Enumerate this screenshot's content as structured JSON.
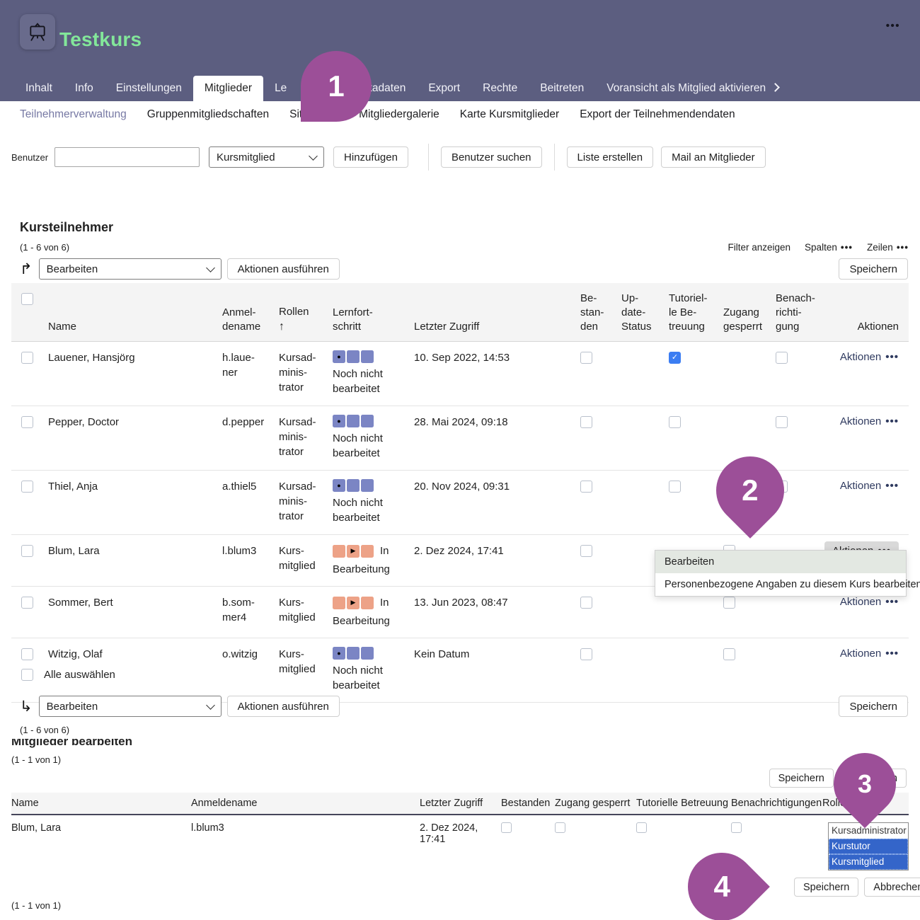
{
  "header": {
    "title": "Testkurs",
    "more": "•••",
    "tabs": [
      {
        "label": "Inhalt"
      },
      {
        "label": "Info"
      },
      {
        "label": "Einstellungen"
      },
      {
        "label": "Mitglieder",
        "active": true
      },
      {
        "label": "Le",
        "fragment": true
      },
      {
        "label": "Metadaten"
      },
      {
        "label": "Export"
      },
      {
        "label": "Rechte"
      },
      {
        "label": "Beitreten"
      },
      {
        "label": "Voransicht als Mitglied aktivieren",
        "chevron": true
      }
    ]
  },
  "subtabs": [
    {
      "label": "Teilnehmerverwaltung",
      "active": true
    },
    {
      "label": "Gruppenmitgliedschaften"
    },
    {
      "label": "Sitzungen"
    },
    {
      "label": "Mitgliedergalerie"
    },
    {
      "label": "Karte Kursmitglieder"
    },
    {
      "label": "Export der Teilnehmendendaten"
    }
  ],
  "toolbar": {
    "benutzer_label": "Benutzer",
    "input_value": "",
    "role_value": "Kursmitglied",
    "hinzufuegen": "Hinzufügen",
    "benutzer_suchen": "Benutzer suchen",
    "liste_erstellen": "Liste erstellen",
    "mail_an_mitglieder": "Mail an Mitglieder"
  },
  "participants": {
    "heading": "Kursteilnehmer",
    "count_top": "(1 - 6 von 6)",
    "filter_link": "Filter anzeigen",
    "spalten_link": "Spalten",
    "zeilen_link": "Zeilen",
    "dots": "•••",
    "bulk_value": "Bearbeiten",
    "apply_label": "Aktionen ausführen",
    "save_label": "Speichern",
    "select_all_label": "Alle auswählen",
    "count_bottom": "(1 - 6 von 6)",
    "aktionen_label": "Aktionen",
    "aktionen_dots": "•••",
    "columns": [
      {
        "label": "",
        "type": "checkbox"
      },
      {
        "label": "Name"
      },
      {
        "label": "Anmel-\ndename"
      },
      {
        "label": "Rollen",
        "sort": "↑"
      },
      {
        "label": "Lernfort-\nschritt"
      },
      {
        "label": "Letzter Zugriff"
      },
      {
        "label": "Be-\nstan-\nden"
      },
      {
        "label": "Up-\ndate-\nStatus"
      },
      {
        "label": "Tutoriel-\nle Be-\ntreuung"
      },
      {
        "label": "Zugang\ngesperrt"
      },
      {
        "label": "Benach-\nrichti-\ngung"
      },
      {
        "label": "Aktionen",
        "align": "right"
      }
    ],
    "rows": [
      {
        "name": "Lauener, Hansjörg",
        "login": "h.laue-\nner",
        "role": "Kursad-\nminis-\ntrator",
        "progress": {
          "state": "not-started",
          "inline_word": "",
          "label": "Noch nicht\nbearbeitet"
        },
        "last_access": "10. Sep 2022, 14:53",
        "bestanden": false,
        "update_status": null,
        "tutorielle": true,
        "zugang": null,
        "benachrichtigung": false,
        "aktionen_style": "link"
      },
      {
        "name": "Pepper, Doctor",
        "login": "d.pepper",
        "role": "Kursad-\nminis-\ntrator",
        "progress": {
          "state": "not-started",
          "inline_word": "",
          "label": "Noch nicht\nbearbeitet"
        },
        "last_access": "28. Mai 2024, 09:18",
        "bestanden": false,
        "update_status": null,
        "tutorielle": false,
        "zugang": null,
        "benachrichtigung": false,
        "aktionen_style": "link"
      },
      {
        "name": "Thiel, Anja",
        "login": "a.thiel5",
        "role": "Kursad-\nminis-\ntrator",
        "progress": {
          "state": "not-started",
          "inline_word": "",
          "label": "Noch nicht\nbearbeitet"
        },
        "last_access": "20. Nov 2024, 09:31",
        "bestanden": false,
        "update_status": null,
        "tutorielle": false,
        "zugang": null,
        "benachrichtigung": false,
        "aktionen_style": "link"
      },
      {
        "name": "Blum, Lara",
        "login": "l.blum3",
        "role": "Kurs-\nmitglied",
        "progress": {
          "state": "in-progress",
          "inline_word": "In",
          "label": "Bearbeitung"
        },
        "last_access": "2. Dez 2024, 17:41",
        "bestanden": false,
        "update_status": null,
        "tutorielle": null,
        "zugang": false,
        "benachrichtigung": null,
        "aktionen_style": "button"
      },
      {
        "name": "Sommer, Bert",
        "login": "b.som-\nmer4",
        "role": "Kurs-\nmitglied",
        "progress": {
          "state": "in-progress",
          "inline_word": "In",
          "label": "Bearbeitung"
        },
        "last_access": "13. Jun 2023, 08:47",
        "bestanden": false,
        "update_status": null,
        "tutorielle": null,
        "zugang": false,
        "benachrichtigung": null,
        "aktionen_style": "link"
      },
      {
        "name": "Witzig, Olaf",
        "login": "o.witzig",
        "role": "Kurs-\nmitglied",
        "progress": {
          "state": "not-started",
          "inline_word": "",
          "label": "Noch nicht\nbearbeitet"
        },
        "last_access": "Kein Datum",
        "bestanden": false,
        "update_status": null,
        "tutorielle": null,
        "zugang": false,
        "benachrichtigung": null,
        "aktionen_style": "link"
      }
    ]
  },
  "context_menu": {
    "items": [
      {
        "label": "Bearbeiten",
        "highlighted": true
      },
      {
        "label": "Personenbezogene Angaben zu diesem Kurs bearbeiten",
        "highlighted": false
      }
    ]
  },
  "edit_section": {
    "heading": "Mitglieder bearbeiten",
    "count_top": "(1 - 1 von 1)",
    "save_label": "Speichern",
    "cancel_label": "Abbrechen",
    "columns": [
      "Name",
      "Anmeldename",
      "Letzter Zugriff",
      "Bestanden",
      "Zugang gesperrt",
      "Tutorielle Betreuung",
      "Benachrichtigungen",
      "Rollen"
    ],
    "row": {
      "name": "Blum, Lara",
      "login": "l.blum3",
      "last_access": "2. Dez 2024, 17:41",
      "bestanden": false,
      "zugang": false,
      "tutorielle": false,
      "benachrichtigungen": false,
      "roles_options": [
        {
          "label": "Kursadministrator",
          "selected": false
        },
        {
          "label": "Kurstutor",
          "selected": true
        },
        {
          "label": "Kursmitglied",
          "selected": true
        }
      ]
    },
    "count_bottom": "(1 - 1 von 1)"
  },
  "callouts": [
    "1",
    "2",
    "3",
    "4"
  ],
  "colors": {
    "header_bg": "#5c5e80",
    "title_green": "#83e79a",
    "callout_purple": "#9c4f98",
    "progress_blue": "#7b85c4",
    "progress_orange": "#eda287",
    "checkbox_checked_blue": "#3b7df2",
    "listbox_selected_blue": "#3465c9",
    "aktionen_link": "#2f3a5f",
    "menu_highlight": "#e3e8e2"
  }
}
